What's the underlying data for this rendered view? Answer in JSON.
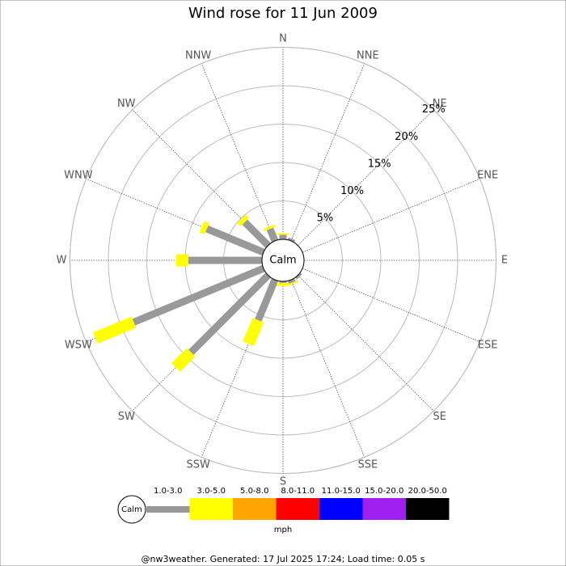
{
  "chart_data": {
    "type": "windrose",
    "title": "Wind rose for 11 Jun 2009",
    "directions": [
      "N",
      "NNE",
      "NE",
      "ENE",
      "E",
      "ESE",
      "SE",
      "SSE",
      "S",
      "SSW",
      "SW",
      "WSW",
      "W",
      "WNW",
      "NW",
      "NNW"
    ],
    "center_label": "Calm",
    "rlim": [
      0,
      25
    ],
    "rticks": [
      {
        "value": 5,
        "label": "5%"
      },
      {
        "value": 10,
        "label": "10%"
      },
      {
        "value": 15,
        "label": "15%"
      },
      {
        "value": 20,
        "label": "20%"
      },
      {
        "value": 25,
        "label": "25%"
      }
    ],
    "unit": "mph",
    "series": [
      {
        "name": "1.0-3.0",
        "color": "#999999",
        "values": [
          0.6,
          0.3,
          0,
          0,
          0,
          0,
          0.3,
          0.4,
          0.2,
          5.7,
          14.2,
          18.3,
          9.6,
          8.0,
          4.3,
          1.7
        ]
      },
      {
        "name": "3.0-5.0",
        "color": "#ffff00",
        "values": [
          0.2,
          0,
          0,
          0,
          0,
          0,
          0,
          0.2,
          0.4,
          3.3,
          2.8,
          5.4,
          1.6,
          0.7,
          0.6,
          0.3
        ]
      },
      {
        "name": "5.0-8.0",
        "color": "#ffa500",
        "values": [
          0,
          0,
          0,
          0,
          0,
          0,
          0,
          0,
          0,
          0,
          0,
          0,
          0,
          0,
          0,
          0
        ]
      },
      {
        "name": "8.0-11.0",
        "color": "#ff0000",
        "values": [
          0,
          0,
          0,
          0,
          0,
          0,
          0,
          0,
          0,
          0,
          0,
          0,
          0,
          0,
          0,
          0
        ]
      },
      {
        "name": "11.0-15.0",
        "color": "#0000ff",
        "values": [
          0,
          0,
          0,
          0,
          0,
          0,
          0,
          0,
          0,
          0,
          0,
          0,
          0,
          0,
          0,
          0
        ]
      },
      {
        "name": "15.0-20.0",
        "color": "#a020f0",
        "values": [
          0,
          0,
          0,
          0,
          0,
          0,
          0,
          0,
          0,
          0,
          0,
          0,
          0,
          0,
          0,
          0
        ]
      },
      {
        "name": "20.0-50.0",
        "color": "#000000",
        "values": [
          0,
          0,
          0,
          0,
          0,
          0,
          0,
          0,
          0,
          0,
          0,
          0,
          0,
          0,
          0,
          0
        ]
      }
    ]
  },
  "footer": "@nw3weather. Generated: 17 Jul 2025 17:24; Load time: 0.05 s"
}
